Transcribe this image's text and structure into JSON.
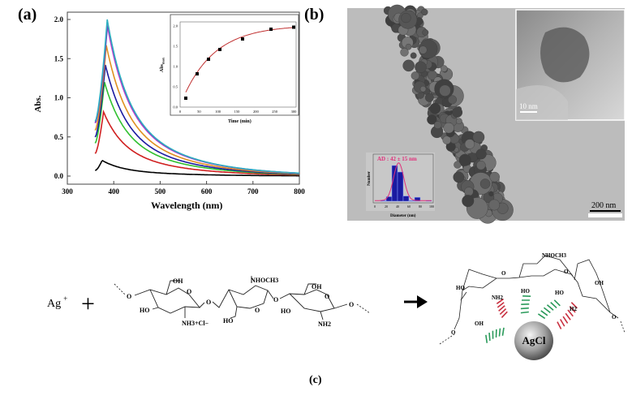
{
  "panel_a": {
    "label": "(a)",
    "chart_data": {
      "type": "line",
      "xlabel": "Wavelength (nm)",
      "ylabel": "Abs.",
      "xlim": [
        300,
        800
      ],
      "ylim": [
        0,
        2.0
      ],
      "xticks": [
        "300",
        "400",
        "500",
        "600",
        "700",
        "800"
      ],
      "yticks": [
        "0.0",
        "0.5",
        "1.0",
        "1.5",
        "2.0"
      ],
      "series": [
        {
          "color": "#000000",
          "peak_nm": 375,
          "peak_abs": 0.2
        },
        {
          "color": "#d02020",
          "peak_nm": 378,
          "peak_abs": 0.82
        },
        {
          "color": "#30c030",
          "peak_nm": 380,
          "peak_abs": 1.2
        },
        {
          "color": "#1a1aa0",
          "peak_nm": 382,
          "peak_abs": 1.42
        },
        {
          "color": "#e09020",
          "peak_nm": 384,
          "peak_abs": 1.67
        },
        {
          "color": "#d040d0",
          "peak_nm": 386,
          "peak_abs": 1.93
        },
        {
          "color": "#7040c0",
          "peak_nm": 387,
          "peak_abs": 1.95
        },
        {
          "color": "#30b0c0",
          "peak_nm": 386,
          "peak_abs": 2.0
        }
      ],
      "inset": {
        "type": "scatter",
        "xlabel": "Time (min)",
        "ylabel": "Abs",
        "ylabel_sub": "max",
        "xlim": [
          0,
          300
        ],
        "ylim": [
          0,
          2.0
        ],
        "xticks": [
          "0",
          "50",
          "100",
          "150",
          "200",
          "250",
          "300"
        ],
        "yticks": [
          "0.0",
          "0.5",
          "1.0",
          "1.5",
          "2.0"
        ],
        "x": [
          15,
          45,
          75,
          105,
          165,
          240,
          300
        ],
        "y": [
          0.22,
          0.82,
          1.18,
          1.42,
          1.68,
          1.92,
          1.97
        ],
        "fit_color": "#c03030"
      }
    }
  },
  "panel_b": {
    "label": "(b)",
    "scale_bar": "200 nm",
    "inset_scale_bar": "10 nm",
    "histogram": {
      "type": "bar",
      "title": "AD : 42 ± 15 nm",
      "xlabel": "Diameter (nm)",
      "ylabel": "Number",
      "xticks": [
        "0",
        "20",
        "40",
        "60",
        "80",
        "100"
      ],
      "bins": [
        10,
        20,
        30,
        40,
        50,
        60,
        70,
        90
      ],
      "counts": [
        1,
        7,
        55,
        45,
        8,
        1,
        6,
        1
      ],
      "bar_color": "#1a1aa0",
      "fit_color": "#e0307a"
    }
  },
  "panel_c": {
    "label": "(c)",
    "reactant_ion": "Ag",
    "reactant_charge": "+",
    "plus": "+",
    "labels": {
      "oh1": "OH",
      "ho1": "HO",
      "nh3cl": "NH3+Cl−",
      "nhoch3": "NHOCH3",
      "ho2": "HO",
      "oh2": "OH",
      "ho3": "HO",
      "nh2": "NH2",
      "o": "O"
    },
    "product": {
      "particle": "AgCl",
      "nhoch3": "NHOCH3",
      "ho_left": "HO",
      "nh": "NH2",
      "ho_mid": "HO",
      "ho_right": "HO",
      "oh_right": "OH",
      "h2": "H2",
      "oh_left": "OH",
      "o": "O"
    }
  }
}
